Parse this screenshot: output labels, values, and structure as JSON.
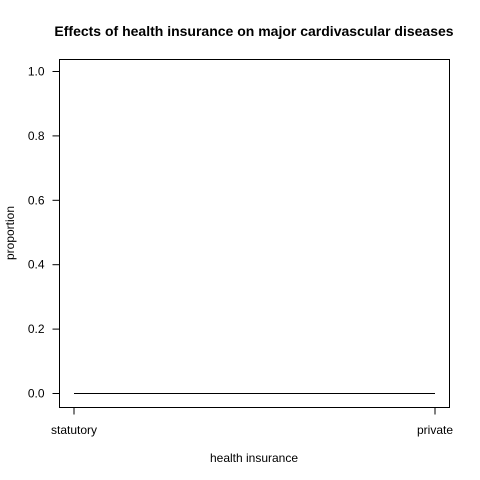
{
  "chart_data": {
    "type": "line",
    "title": "Effects of health insurance on major cardivascular diseases",
    "xlabel": "health insurance",
    "ylabel": "proportion",
    "categories": [
      "statutory",
      "private"
    ],
    "series": [
      {
        "values": [
          0.0,
          0.0
        ]
      }
    ],
    "ylim": [
      0,
      1.0
    ],
    "yticks": [
      "0.0",
      "0.2",
      "0.4",
      "0.6",
      "0.8",
      "1.0"
    ],
    "grid": false,
    "legend": "none",
    "colors": {
      "line": "#000000",
      "axis": "#000000",
      "background": "#ffffff"
    }
  }
}
